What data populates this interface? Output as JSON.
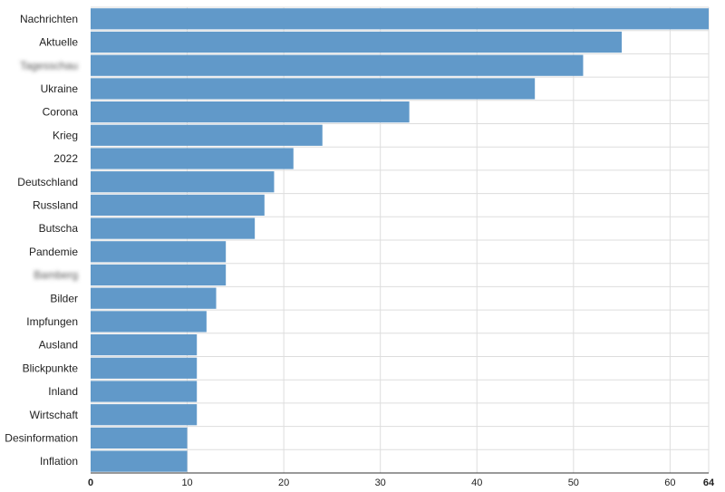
{
  "chart_data": {
    "type": "bar",
    "orientation": "horizontal",
    "categories": [
      "Nachrichten",
      "Aktuelle",
      "Tagesschau",
      "Ukraine",
      "Corona",
      "Krieg",
      "2022",
      "Deutschland",
      "Russland",
      "Butscha",
      "Pandemie",
      "Bamberg",
      "Bilder",
      "Impfungen",
      "Ausland",
      "Blickpunkte",
      "Inland",
      "Wirtschaft",
      "Desinformation",
      "Inflation"
    ],
    "blurred_categories": [
      "Tagesschau",
      "Bamberg"
    ],
    "values": [
      64,
      55,
      51,
      46,
      33,
      24,
      21,
      19,
      18,
      17,
      14,
      14,
      13,
      12,
      11,
      11,
      11,
      11,
      10,
      10
    ],
    "xlim": [
      0,
      64
    ],
    "x_ticks": [
      0,
      10,
      20,
      30,
      40,
      50,
      60,
      64
    ],
    "bold_ticks": [
      0,
      64
    ],
    "grid": true,
    "bar_color": "#6199c9",
    "title": "",
    "xlabel": "",
    "ylabel": ""
  }
}
